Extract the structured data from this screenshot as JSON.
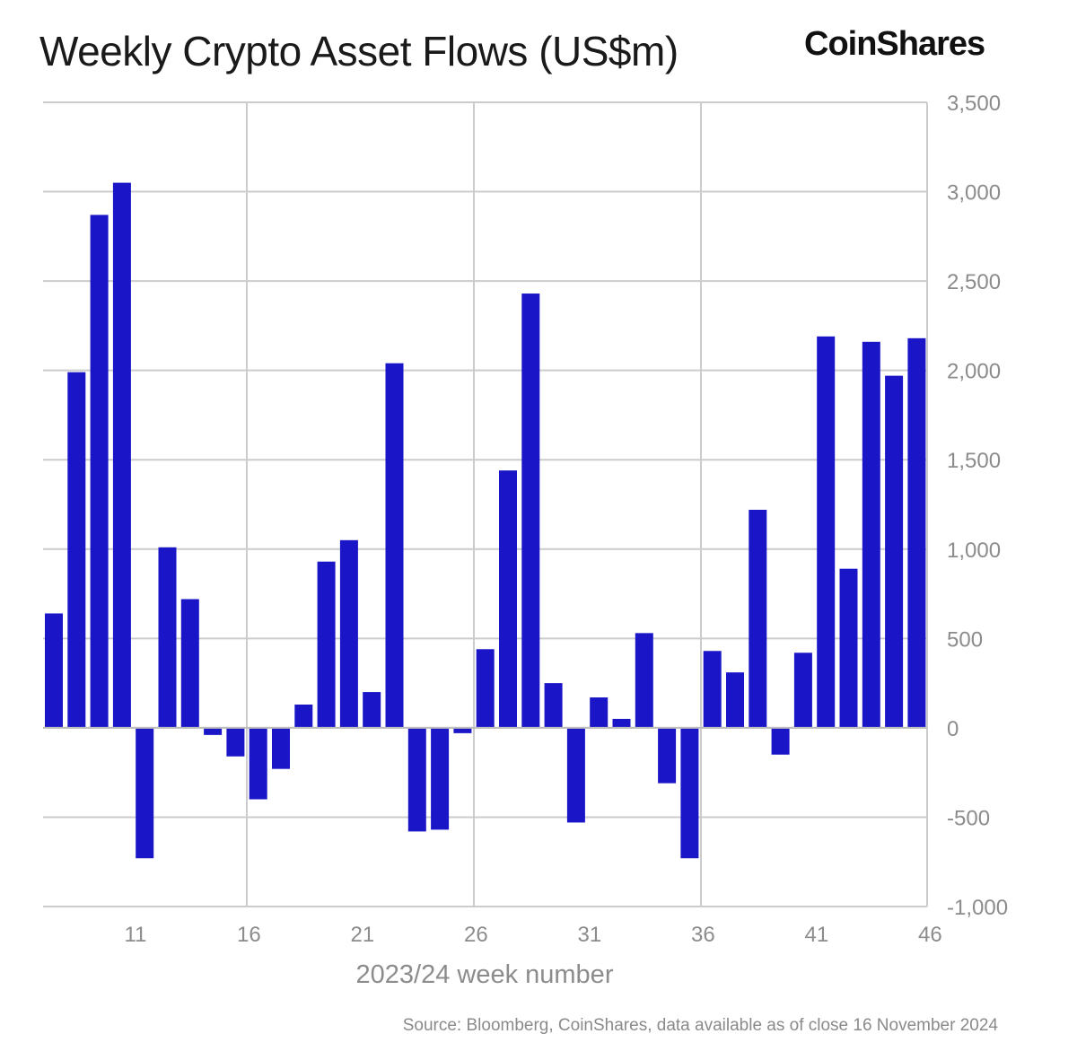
{
  "title": "Weekly Crypto Asset Flows (US$m)",
  "brand": "CoinShares",
  "source": "Source: Bloomberg, CoinShares, data available as of close 16 November 2024",
  "colors": {
    "bar": "#1a16c8",
    "grid": "#cccccc",
    "text": "#8c8c8c"
  },
  "chart_data": {
    "type": "bar",
    "title": "Weekly Crypto Asset Flows (US$m)",
    "xlabel": "2023/24 week number",
    "ylabel": "",
    "ylim": [
      -1000,
      3500
    ],
    "yticks": [
      -1000,
      -500,
      0,
      500,
      1000,
      1500,
      2000,
      2500,
      3000,
      3500
    ],
    "ytick_labels": [
      "-1,000",
      "-500",
      "0",
      "500",
      "1,000",
      "1,500",
      "2,000",
      "2,500",
      "3,000",
      "3,500"
    ],
    "xtick_labels": [
      "11",
      "16",
      "21",
      "26",
      "31",
      "36",
      "41",
      "46"
    ],
    "categories": [
      8,
      9,
      10,
      11,
      12,
      13,
      14,
      15,
      16,
      17,
      18,
      19,
      20,
      21,
      22,
      23,
      24,
      25,
      26,
      27,
      28,
      29,
      30,
      31,
      32,
      33,
      34,
      35,
      36,
      37,
      38,
      39,
      40,
      41,
      42,
      43,
      44,
      45,
      46
    ],
    "values": [
      640,
      1990,
      2870,
      3050,
      -730,
      1010,
      720,
      -40,
      -160,
      -400,
      -230,
      130,
      930,
      1050,
      200,
      2040,
      -580,
      -570,
      -30,
      440,
      1440,
      2430,
      250,
      -530,
      170,
      50,
      530,
      -310,
      -730,
      430,
      310,
      1220,
      -150,
      420,
      2190,
      890,
      2160,
      1970,
      2180
    ],
    "legend": "none",
    "grid": true
  }
}
